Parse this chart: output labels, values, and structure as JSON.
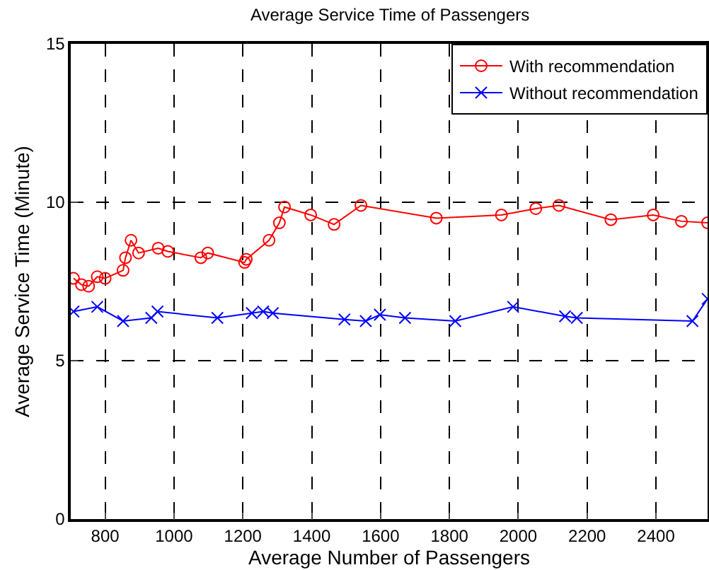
{
  "chart_data": {
    "type": "line",
    "title": "Average Service Time of Passengers",
    "xlabel": "Average Number of Passengers",
    "ylabel": "Average Service Time (Minute)",
    "series": [
      {
        "name": "With recommendation",
        "color": "#ff0000",
        "marker": "circle",
        "x": [
          708,
          731,
          752,
          777,
          800,
          852,
          859,
          875,
          897,
          954,
          982,
          1078,
          1098,
          1205,
          1210,
          1276,
          1306,
          1321,
          1397,
          1465,
          1543,
          1762,
          1951,
          2051,
          2118,
          2269,
          2392,
          2474,
          2550
        ],
        "values": [
          7.6,
          7.4,
          7.35,
          7.65,
          7.6,
          7.85,
          8.25,
          8.8,
          8.4,
          8.55,
          8.45,
          8.25,
          8.4,
          8.1,
          8.2,
          8.8,
          9.35,
          9.85,
          9.6,
          9.3,
          9.9,
          9.5,
          9.6,
          9.8,
          9.9,
          9.45,
          9.6,
          9.4,
          9.35
        ]
      },
      {
        "name": "Without recommendation",
        "color": "#0000ff",
        "marker": "cross",
        "x": [
          708,
          777,
          852,
          934,
          952,
          1126,
          1226,
          1259,
          1287,
          1495,
          1557,
          1598,
          1671,
          1817,
          1985,
          2136,
          2170,
          2506,
          2550
        ],
        "values": [
          6.55,
          6.7,
          6.25,
          6.35,
          6.55,
          6.35,
          6.5,
          6.55,
          6.5,
          6.3,
          6.25,
          6.45,
          6.35,
          6.25,
          6.7,
          6.4,
          6.35,
          6.25,
          6.95
        ]
      }
    ],
    "xlim": [
      700,
      2550
    ],
    "xticks": [
      800,
      1000,
      1200,
      1400,
      1600,
      1800,
      2000,
      2200,
      2400
    ],
    "ylim": [
      0,
      15
    ],
    "yticks": [
      0,
      5,
      10,
      15
    ],
    "grid": true,
    "legend": "top right",
    "line_style": "solid"
  }
}
